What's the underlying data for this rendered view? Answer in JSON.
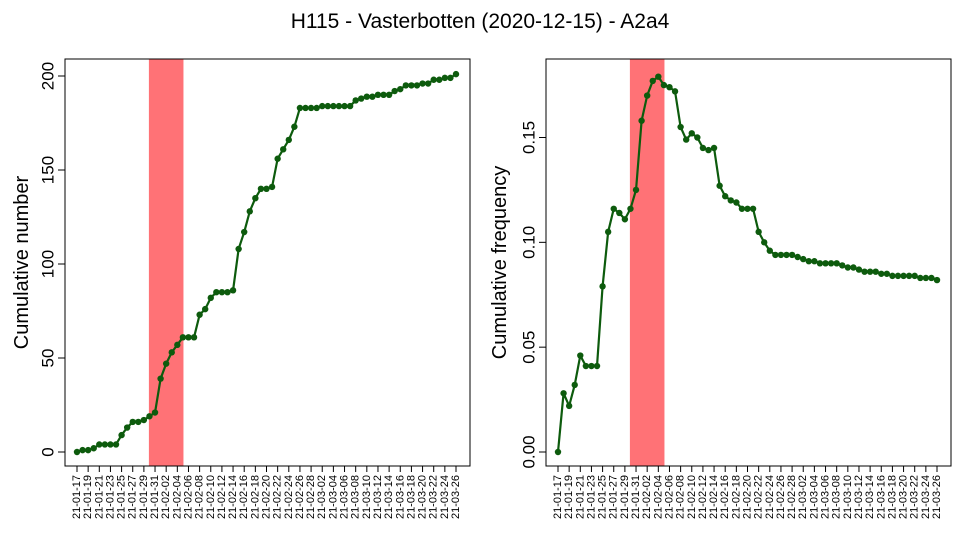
{
  "title": "H115 - Vasterbotten (2020-12-15) - A2a4",
  "colors": {
    "line": "#0d5b0d",
    "highlight": "#ff7276",
    "frame": "#000000",
    "background": "#ffffff"
  },
  "chart_data": [
    {
      "type": "line",
      "title": "",
      "xlabel": "",
      "ylabel": "Cumulative number",
      "ylim": [
        0,
        200
      ],
      "yticks": [
        "0",
        "50",
        "100",
        "150",
        "200"
      ],
      "ytick_values": [
        0,
        50,
        100,
        150,
        200
      ],
      "grid": false,
      "highlight_span": [
        "21-01-30",
        "21-02-05"
      ],
      "x": [
        "21-01-17",
        "21-01-18",
        "21-01-19",
        "21-01-20",
        "21-01-21",
        "21-01-22",
        "21-01-23",
        "21-01-24",
        "21-01-25",
        "21-01-26",
        "21-01-27",
        "21-01-28",
        "21-01-29",
        "21-01-30",
        "21-01-31",
        "21-02-01",
        "21-02-02",
        "21-02-03",
        "21-02-04",
        "21-02-05",
        "21-02-06",
        "21-02-07",
        "21-02-08",
        "21-02-09",
        "21-02-10",
        "21-02-11",
        "21-02-12",
        "21-02-13",
        "21-02-14",
        "21-02-15",
        "21-02-16",
        "21-02-17",
        "21-02-18",
        "21-02-19",
        "21-02-20",
        "21-02-21",
        "21-02-22",
        "21-02-23",
        "21-02-24",
        "21-02-25",
        "21-02-26",
        "21-02-27",
        "21-02-28",
        "21-03-01",
        "21-03-02",
        "21-03-03",
        "21-03-04",
        "21-03-05",
        "21-03-06",
        "21-03-07",
        "21-03-08",
        "21-03-09",
        "21-03-10",
        "21-03-11",
        "21-03-12",
        "21-03-13",
        "21-03-14",
        "21-03-15",
        "21-03-16",
        "21-03-17",
        "21-03-18",
        "21-03-19",
        "21-03-20",
        "21-03-21",
        "21-03-22",
        "21-03-23",
        "21-03-24",
        "21-03-25",
        "21-03-26"
      ],
      "xticks": [
        "21-01-17",
        "21-01-19",
        "21-01-21",
        "21-01-23",
        "21-01-25",
        "21-01-27",
        "21-01-29",
        "21-01-31",
        "21-02-02",
        "21-02-04",
        "21-02-06",
        "21-02-08",
        "21-02-10",
        "21-02-12",
        "21-02-14",
        "21-02-16",
        "21-02-18",
        "21-02-20",
        "21-02-22",
        "21-02-24",
        "21-02-26",
        "21-02-28",
        "21-03-02",
        "21-03-04",
        "21-03-06",
        "21-03-08",
        "21-03-10",
        "21-03-12",
        "21-03-14",
        "21-03-16",
        "21-03-18",
        "21-03-20",
        "21-03-22",
        "21-03-24",
        "21-03-26"
      ],
      "series": [
        {
          "values": [
            0,
            1,
            1,
            2,
            4,
            4,
            4,
            4,
            9,
            13,
            16,
            16,
            17,
            19,
            21,
            39,
            47,
            53,
            57,
            61,
            61,
            61,
            73,
            76,
            82,
            85,
            85,
            85,
            86,
            108,
            117,
            128,
            135,
            140,
            140,
            141,
            156,
            161,
            166,
            173,
            183,
            183,
            183,
            183,
            184,
            184,
            184,
            184,
            184,
            184,
            187,
            188,
            189,
            189,
            190,
            190,
            190,
            192,
            193,
            195,
            195,
            195,
            196,
            196,
            198,
            198,
            199,
            199,
            201
          ]
        }
      ]
    },
    {
      "type": "line",
      "title": "",
      "xlabel": "",
      "ylabel": "Cumulative frequency",
      "ylim": [
        0,
        0.18
      ],
      "yticks": [
        "0.00",
        "0.05",
        "0.10",
        "0.15"
      ],
      "ytick_values": [
        0,
        0.05,
        0.1,
        0.15
      ],
      "grid": false,
      "highlight_span": [
        "21-01-30",
        "21-02-05"
      ],
      "x": [
        "21-01-17",
        "21-01-18",
        "21-01-19",
        "21-01-20",
        "21-01-21",
        "21-01-22",
        "21-01-23",
        "21-01-24",
        "21-01-25",
        "21-01-26",
        "21-01-27",
        "21-01-28",
        "21-01-29",
        "21-01-30",
        "21-01-31",
        "21-02-01",
        "21-02-02",
        "21-02-03",
        "21-02-04",
        "21-02-05",
        "21-02-06",
        "21-02-07",
        "21-02-08",
        "21-02-09",
        "21-02-10",
        "21-02-11",
        "21-02-12",
        "21-02-13",
        "21-02-14",
        "21-02-15",
        "21-02-16",
        "21-02-17",
        "21-02-18",
        "21-02-19",
        "21-02-20",
        "21-02-21",
        "21-02-22",
        "21-02-23",
        "21-02-24",
        "21-02-25",
        "21-02-26",
        "21-02-27",
        "21-02-28",
        "21-03-01",
        "21-03-02",
        "21-03-03",
        "21-03-04",
        "21-03-05",
        "21-03-06",
        "21-03-07",
        "21-03-08",
        "21-03-09",
        "21-03-10",
        "21-03-11",
        "21-03-12",
        "21-03-13",
        "21-03-14",
        "21-03-15",
        "21-03-16",
        "21-03-17",
        "21-03-18",
        "21-03-19",
        "21-03-20",
        "21-03-21",
        "21-03-22",
        "21-03-23",
        "21-03-24",
        "21-03-25",
        "21-03-26"
      ],
      "xticks": [
        "21-01-17",
        "21-01-19",
        "21-01-21",
        "21-01-23",
        "21-01-25",
        "21-01-27",
        "21-01-29",
        "21-01-31",
        "21-02-02",
        "21-02-04",
        "21-02-06",
        "21-02-08",
        "21-02-10",
        "21-02-12",
        "21-02-14",
        "21-02-16",
        "21-02-18",
        "21-02-20",
        "21-02-22",
        "21-02-24",
        "21-02-26",
        "21-02-28",
        "21-03-02",
        "21-03-04",
        "21-03-06",
        "21-03-08",
        "21-03-10",
        "21-03-12",
        "21-03-14",
        "21-03-16",
        "21-03-18",
        "21-03-20",
        "21-03-22",
        "21-03-24",
        "21-03-26"
      ],
      "series": [
        {
          "values": [
            0,
            0.028,
            0.022,
            0.032,
            0.046,
            0.041,
            0.041,
            0.041,
            0.079,
            0.105,
            0.116,
            0.114,
            0.111,
            0.116,
            0.125,
            0.158,
            0.17,
            0.177,
            0.179,
            0.175,
            0.174,
            0.172,
            0.155,
            0.149,
            0.152,
            0.15,
            0.145,
            0.144,
            0.145,
            0.127,
            0.122,
            0.12,
            0.119,
            0.116,
            0.116,
            0.116,
            0.105,
            0.1,
            0.096,
            0.094,
            0.094,
            0.094,
            0.094,
            0.093,
            0.092,
            0.091,
            0.091,
            0.09,
            0.09,
            0.09,
            0.09,
            0.089,
            0.088,
            0.088,
            0.087,
            0.086,
            0.086,
            0.086,
            0.085,
            0.085,
            0.084,
            0.084,
            0.084,
            0.084,
            0.084,
            0.083,
            0.083,
            0.083,
            0.082
          ]
        }
      ]
    }
  ]
}
